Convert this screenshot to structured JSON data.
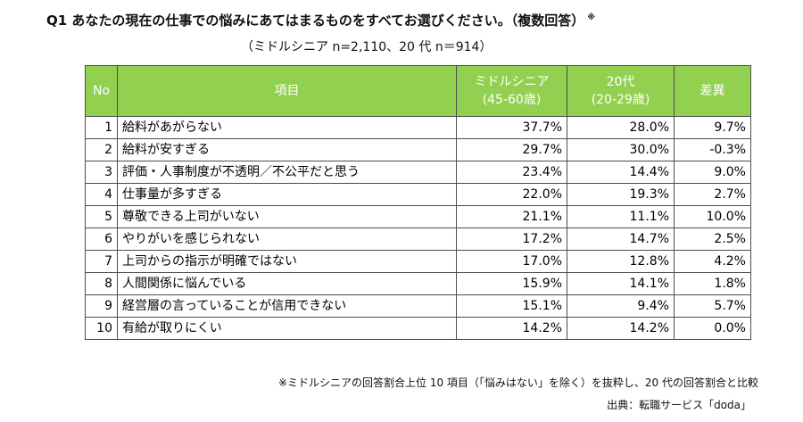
{
  "title": "Q1 あなたの現在の仕事での悩みにあてはまるものをすべてお選びください。（複数回答）",
  "title_mark": "※",
  "subtitle": "（ミドルシニア n=2,110、20 代 n＝914）",
  "table": {
    "headers": {
      "no": "No",
      "item": "項目",
      "middle_line1": "ミドルシニア",
      "middle_line2": "(45-60歳)",
      "young_line1": "20代",
      "young_line2": "(20-29歳)",
      "diff": "差異"
    },
    "header_color": "#92d050",
    "rows": [
      {
        "no": "1",
        "item": "給料があがらない",
        "middle": "37.7%",
        "young": "28.0%",
        "diff": "9.7%"
      },
      {
        "no": "2",
        "item": "給料が安すぎる",
        "middle": "29.7%",
        "young": "30.0%",
        "diff": "-0.3%"
      },
      {
        "no": "3",
        "item": "評価・人事制度が不透明／不公平だと思う",
        "middle": "23.4%",
        "young": "14.4%",
        "diff": "9.0%"
      },
      {
        "no": "4",
        "item": "仕事量が多すぎる",
        "middle": "22.0%",
        "young": "19.3%",
        "diff": "2.7%"
      },
      {
        "no": "5",
        "item": "尊敬できる上司がいない",
        "middle": "21.1%",
        "young": "11.1%",
        "diff": "10.0%"
      },
      {
        "no": "6",
        "item": "やりがいを感じられない",
        "middle": "17.2%",
        "young": "14.7%",
        "diff": "2.5%"
      },
      {
        "no": "7",
        "item": "上司からの指示が明確ではない",
        "middle": "17.0%",
        "young": "12.8%",
        "diff": "4.2%"
      },
      {
        "no": "8",
        "item": "人間関係に悩んでいる",
        "middle": "15.9%",
        "young": "14.1%",
        "diff": "1.8%"
      },
      {
        "no": "9",
        "item": "経営層の言っていることが信用できない",
        "middle": "15.1%",
        "young": "9.4%",
        "diff": "5.7%"
      },
      {
        "no": "10",
        "item": "有給が取りにくい",
        "middle": "14.2%",
        "young": "14.2%",
        "diff": "0.0%"
      }
    ]
  },
  "note": "※ミドルシニアの回答割合上位 10 項目（「悩みはない」を除く）を抜粋し、20 代の回答割合と比較",
  "source": "出典：転職サービス「doda」"
}
